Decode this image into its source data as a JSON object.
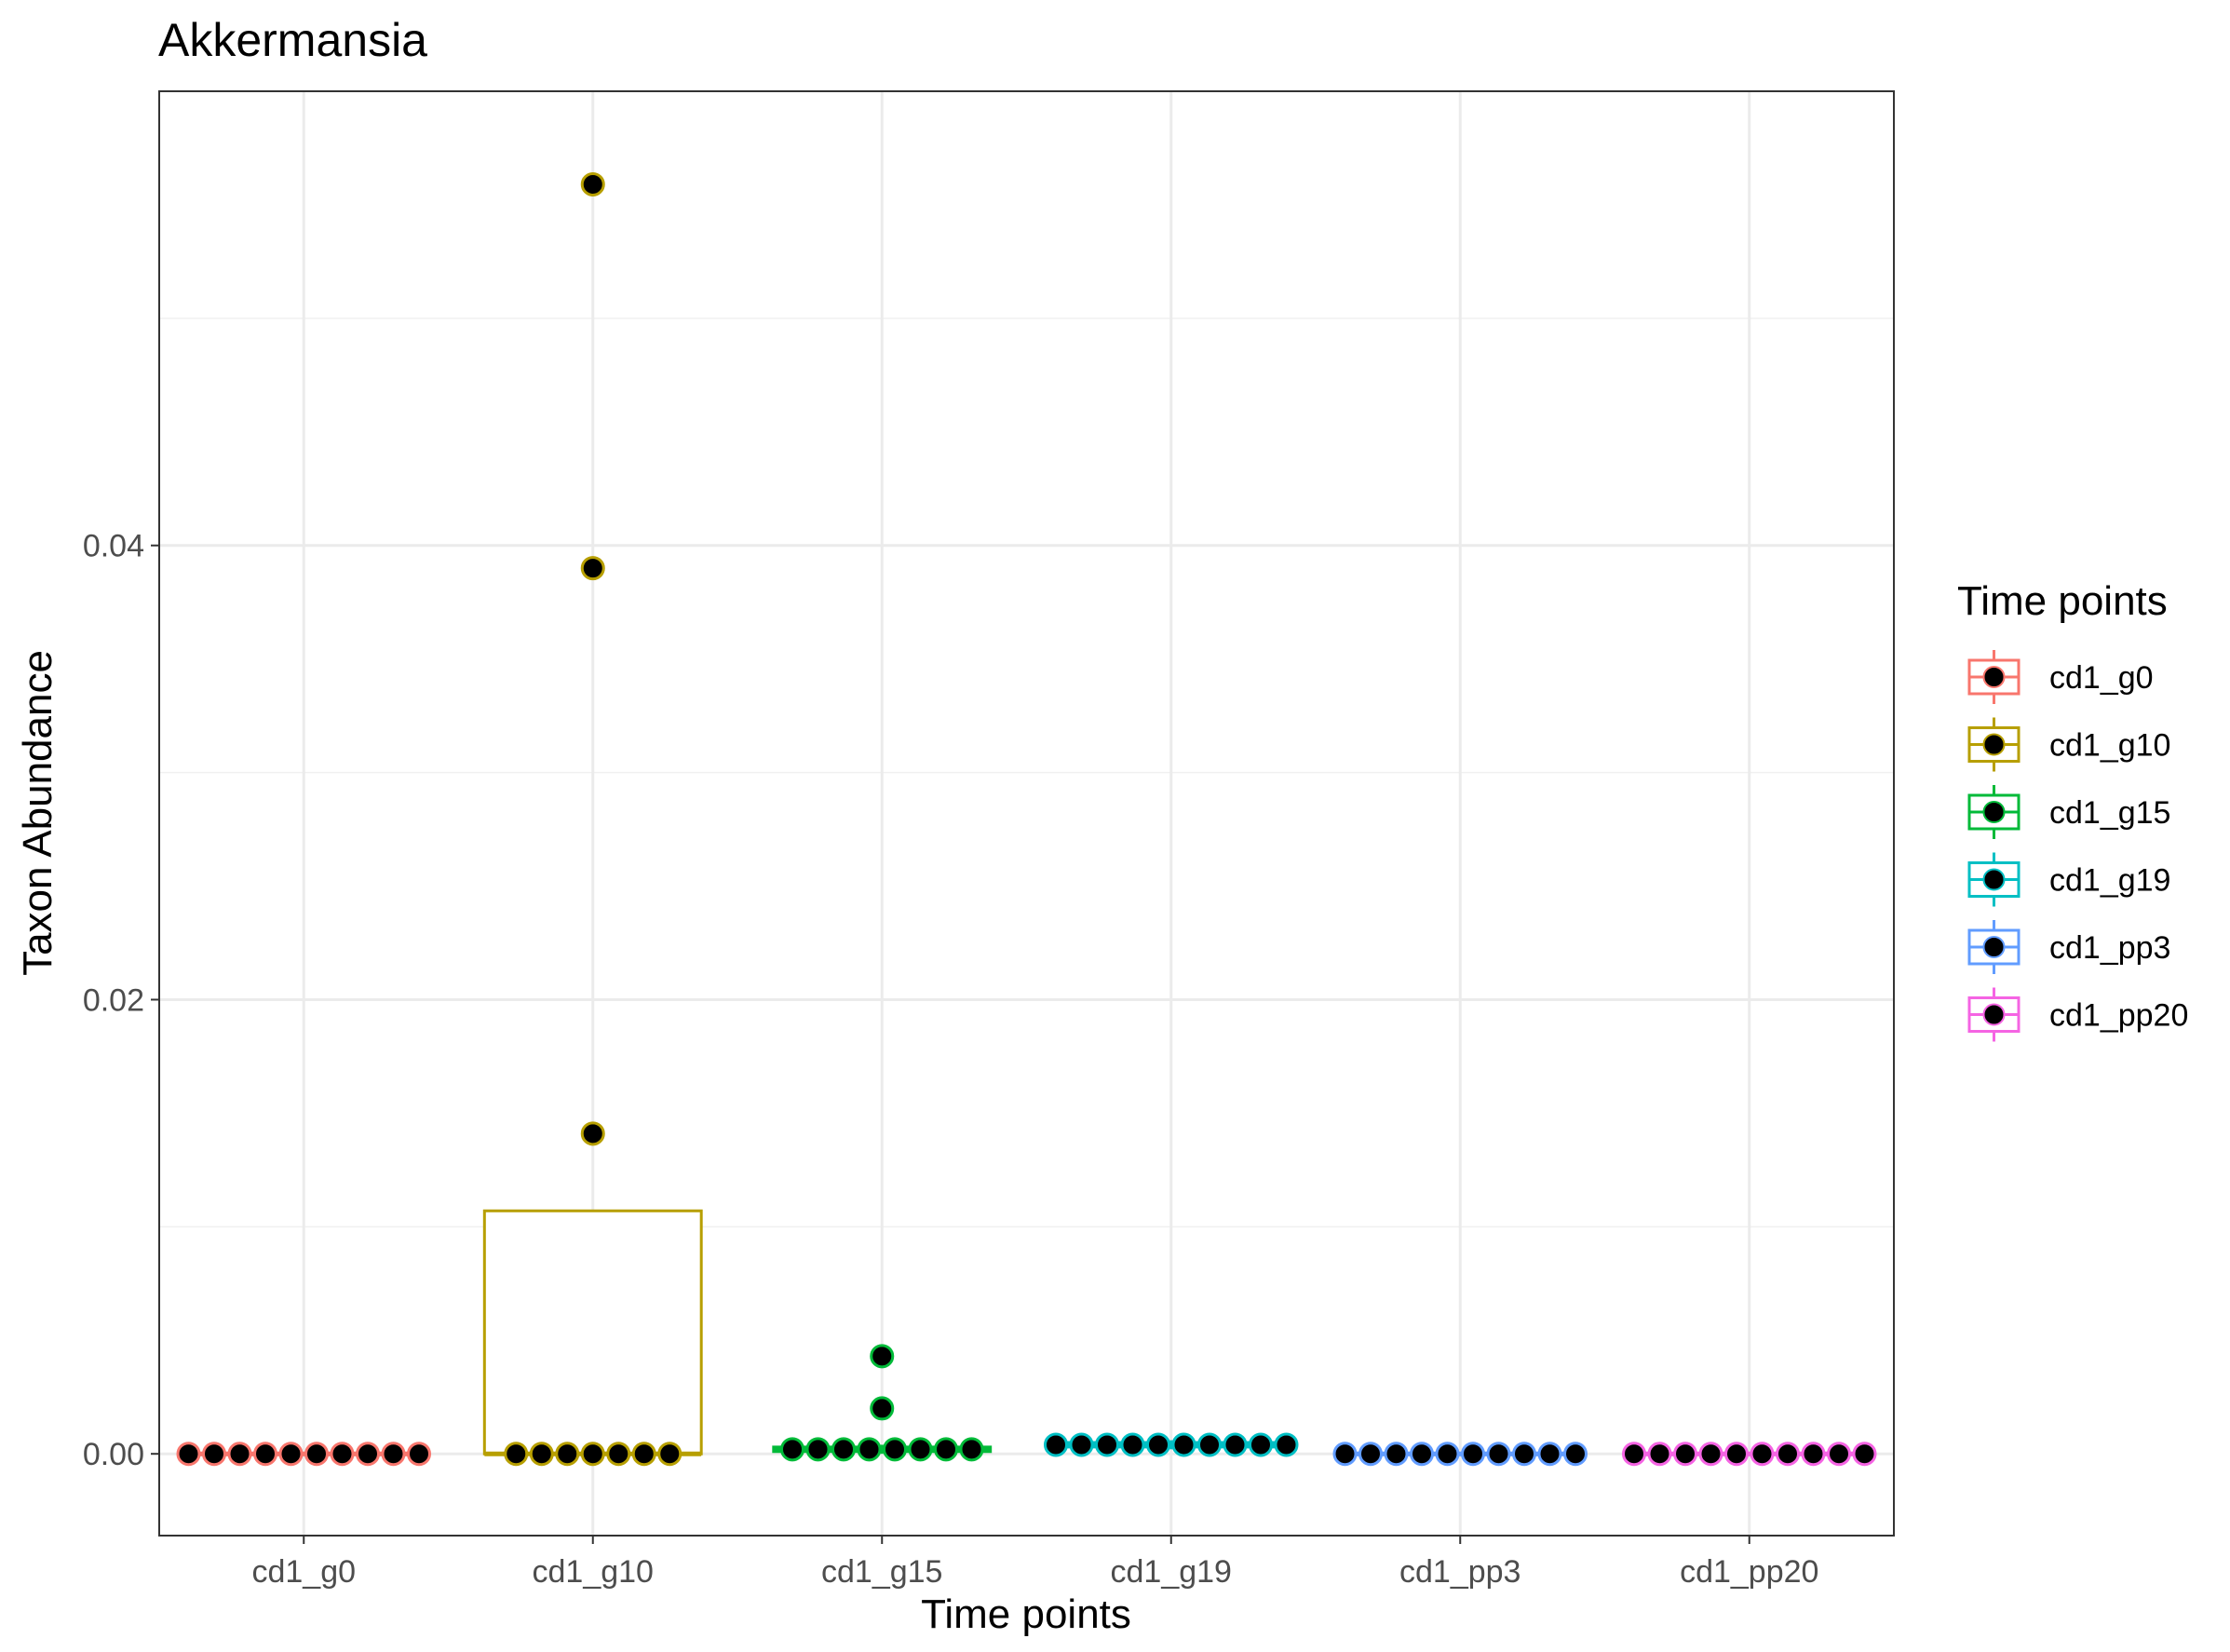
{
  "chart_data": {
    "type": "boxplot",
    "title": "Akkermansia",
    "xlabel": "Time points",
    "ylabel": "Taxon Abundance",
    "ylim": [
      -0.0036,
      0.06
    ],
    "yticks": [
      0.0,
      0.02,
      0.04
    ],
    "ytick_labels": [
      "0.00",
      "0.02",
      "0.04"
    ],
    "grid": true,
    "legend": {
      "title": "Time points",
      "position": "right"
    },
    "categories": [
      "cd1_g0",
      "cd1_g10",
      "cd1_g15",
      "cd1_g19",
      "cd1_pp3",
      "cd1_pp20"
    ],
    "colors": [
      "#F8766D",
      "#B79F00",
      "#00BA38",
      "#00BFC4",
      "#619CFF",
      "#F564E3"
    ],
    "boxes": [
      {
        "q1": 0.0,
        "median": 0.0,
        "q3": 0.0,
        "whisker_low": 0.0,
        "whisker_high": 0.0
      },
      {
        "q1": 0.0,
        "median": 0.0,
        "q3": 0.0107,
        "whisker_low": 0.0,
        "whisker_high": 0.0107
      },
      {
        "q1": 0.0001,
        "median": 0.0002,
        "q3": 0.0003,
        "whisker_low": 0.0,
        "whisker_high": 0.0004
      },
      {
        "q1": 0.0003,
        "median": 0.0004,
        "q3": 0.0005,
        "whisker_low": 0.0002,
        "whisker_high": 0.0006
      },
      {
        "q1": 0.0,
        "median": 0.0,
        "q3": 0.0,
        "whisker_low": 0.0,
        "whisker_high": 0.0
      },
      {
        "q1": 0.0,
        "median": 0.0,
        "q3": 0.0,
        "whisker_low": 0.0,
        "whisker_high": 0.0
      }
    ],
    "points": [
      [
        0,
        0,
        0,
        0,
        0,
        0,
        0,
        0,
        0,
        0
      ],
      [
        0,
        0,
        0,
        0,
        0,
        0,
        0,
        0.0141,
        0.039,
        0.0559
      ],
      [
        0.0002,
        0.0002,
        0.0002,
        0.0002,
        0.0002,
        0.0002,
        0.0002,
        0.0002,
        0.002,
        0.0043
      ],
      [
        0.0004,
        0.0004,
        0.0004,
        0.0004,
        0.0004,
        0.0004,
        0.0004,
        0.0004,
        0.0004,
        0.0004
      ],
      [
        0,
        0,
        0,
        0,
        0,
        0,
        0,
        0,
        0,
        0
      ],
      [
        0,
        0,
        0,
        0,
        0,
        0,
        0,
        0,
        0,
        0
      ]
    ]
  }
}
